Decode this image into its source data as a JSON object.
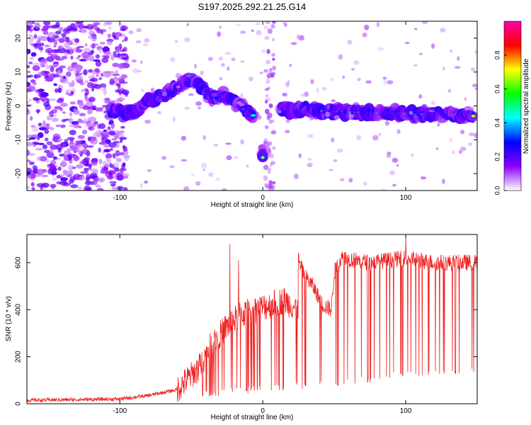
{
  "title": "S197.2025.292.21.25.G14",
  "chart_data": [
    {
      "type": "heatmap",
      "xlabel": "Height of straight line (km)",
      "ylabel": "Frequency (Hz)",
      "xlim": [
        -165,
        150
      ],
      "ylim": [
        -25,
        25
      ],
      "xticks": [
        -100,
        0,
        100
      ],
      "yticks": [
        -20,
        -10,
        0,
        10,
        20
      ],
      "colorbar": {
        "label": "Normalized spectral amplitude",
        "range": [
          0,
          1
        ],
        "ticks": [
          "0.0",
          "0.2",
          "0.4",
          "0.6",
          "0.8"
        ],
        "colors": [
          "#ffffff",
          "#8b00ff",
          "#0000ff",
          "#00ffff",
          "#00ff00",
          "#ffff00",
          "#ff0000",
          "#ff00aa"
        ]
      },
      "ridges": [
        {
          "name": "noise-band",
          "x_range": [
            -165,
            -95
          ],
          "y_range": [
            -25,
            25
          ],
          "amplitude": 0.12
        },
        {
          "name": "rising-arc",
          "points": [
            [
              -107,
              -2
            ],
            [
              -92,
              -2
            ],
            [
              -82,
              1
            ],
            [
              -70,
              3
            ],
            [
              -58,
              6
            ],
            [
              -50,
              8
            ],
            [
              -42,
              5
            ],
            [
              -35,
              2
            ],
            [
              -27,
              3
            ],
            [
              -20,
              1
            ],
            [
              -12,
              -1
            ],
            [
              -6,
              -3
            ]
          ],
          "amplitude": 0.45
        },
        {
          "name": "impulse-low",
          "points": [
            [
              0,
              -13
            ],
            [
              0,
              -16
            ]
          ],
          "amplitude": 0.7
        },
        {
          "name": "main-line",
          "points": [
            [
              12,
              -1
            ],
            [
              40,
              -1.5
            ],
            [
              70,
              -2
            ],
            [
              100,
              -2.2
            ],
            [
              130,
              -2.6
            ],
            [
              148,
              -3
            ]
          ],
          "amplitude": 0.75
        }
      ]
    },
    {
      "type": "line",
      "xlabel": "Height of straight line (km)",
      "ylabel": "SNR (10 * v/v)",
      "xlim": [
        -165,
        150
      ],
      "ylim": [
        0,
        720
      ],
      "xticks": [
        -100,
        0,
        100
      ],
      "yticks": [
        0,
        200,
        400,
        600
      ],
      "color": "#ee2222",
      "envelope": [
        [
          -165,
          15
        ],
        [
          -100,
          20
        ],
        [
          -80,
          35
        ],
        [
          -60,
          60
        ],
        [
          -45,
          150
        ],
        [
          -35,
          260
        ],
        [
          -25,
          330
        ],
        [
          -15,
          380
        ],
        [
          -5,
          400
        ],
        [
          5,
          420
        ],
        [
          15,
          440
        ],
        [
          25,
          400
        ],
        [
          25,
          600
        ],
        [
          30,
          540
        ],
        [
          35,
          500
        ],
        [
          42,
          420
        ],
        [
          48,
          400
        ],
        [
          50,
          560
        ],
        [
          55,
          620
        ],
        [
          65,
          610
        ],
        [
          75,
          600
        ],
        [
          100,
          620
        ],
        [
          120,
          600
        ],
        [
          150,
          600
        ]
      ],
      "dropout_floor": [
        [
          -30,
          30
        ],
        [
          0,
          50
        ],
        [
          50,
          70
        ],
        [
          75,
          90
        ],
        [
          100,
          110
        ],
        [
          130,
          120
        ]
      ],
      "spikes": [
        [
          -23,
          680
        ],
        [
          -17,
          610
        ],
        [
          25,
          640
        ],
        [
          100,
          720
        ]
      ]
    }
  ]
}
